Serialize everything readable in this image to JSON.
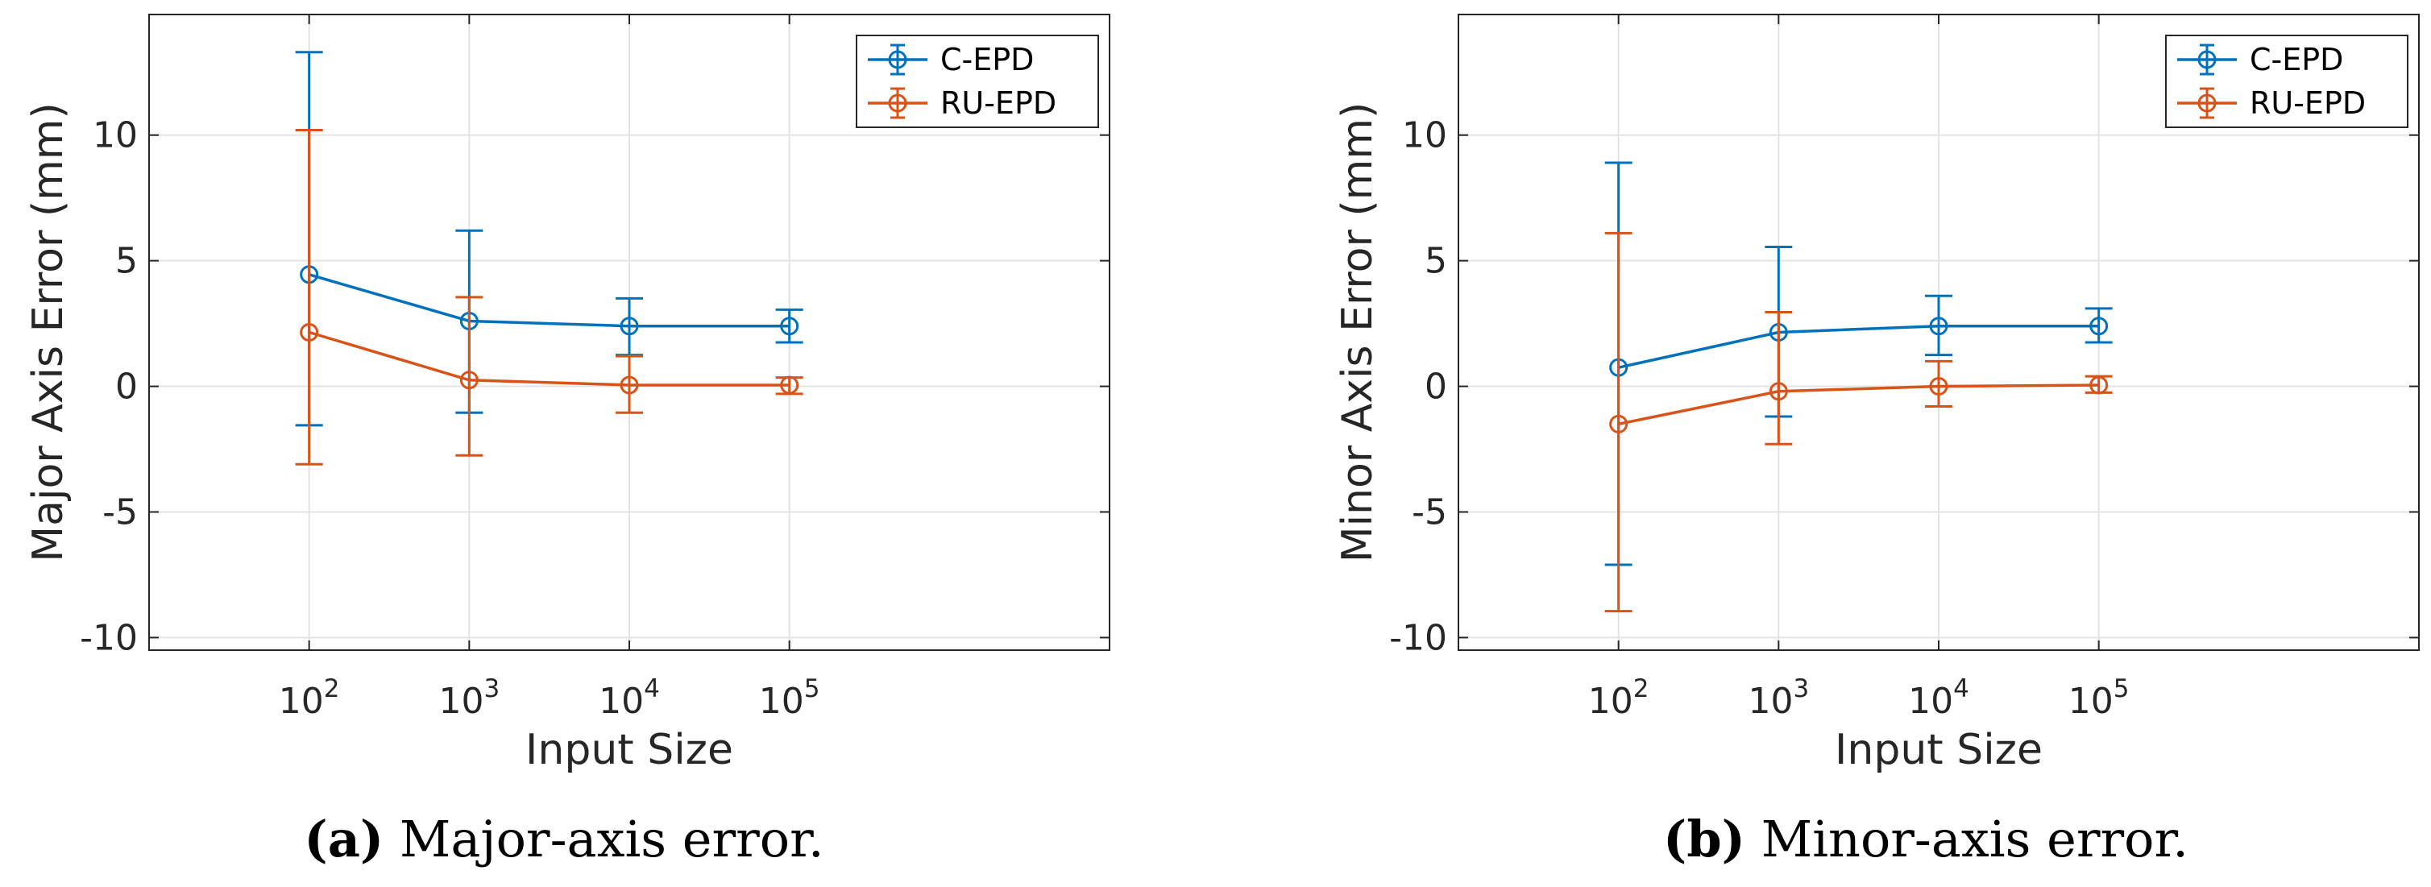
{
  "chart_data": [
    {
      "type": "line",
      "subtype": "errorbar",
      "title": "",
      "xlabel": "Input Size",
      "ylabel": "Major Axis Error (mm)",
      "xscale": "log",
      "xlim": [
        10,
        10000000
      ],
      "ylim": [
        -10.5,
        14.8
      ],
      "yticks": [
        -10,
        -5,
        0,
        5,
        10
      ],
      "ytick_labels": [
        "-10",
        "-5",
        "0",
        "5",
        "10"
      ],
      "xticks": [
        100,
        1000,
        10000,
        100000
      ],
      "xtick_labels": [
        {
          "base": "10",
          "exp": "2"
        },
        {
          "base": "10",
          "exp": "3"
        },
        {
          "base": "10",
          "exp": "4"
        },
        {
          "base": "10",
          "exp": "5"
        }
      ],
      "grid": true,
      "legend_position": "top-right",
      "x": [
        100,
        1000,
        10000,
        100000
      ],
      "series": [
        {
          "name": "C-EPD",
          "color": "#0072BD",
          "values": [
            4.45,
            2.6,
            2.4,
            2.4
          ],
          "lower": [
            -1.55,
            -1.05,
            1.25,
            1.75
          ],
          "upper": [
            13.3,
            6.2,
            3.5,
            3.05
          ]
        },
        {
          "name": "RU-EPD",
          "color": "#D95319",
          "values": [
            2.15,
            0.25,
            0.05,
            0.05
          ],
          "lower": [
            -3.1,
            -2.75,
            -1.05,
            -0.3
          ],
          "upper": [
            10.2,
            3.55,
            1.2,
            0.35
          ]
        }
      ],
      "caption": {
        "label": "(a)",
        "text": "Major-axis error."
      }
    },
    {
      "type": "line",
      "subtype": "errorbar",
      "title": "",
      "xlabel": "Input Size",
      "ylabel": "Minor Axis Error (mm)",
      "xscale": "log",
      "xlim": [
        10,
        10000000
      ],
      "ylim": [
        -10.5,
        14.8
      ],
      "yticks": [
        -10,
        -5,
        0,
        5,
        10
      ],
      "ytick_labels": [
        "-10",
        "-5",
        "0",
        "5",
        "10"
      ],
      "xticks": [
        100,
        1000,
        10000,
        100000
      ],
      "xtick_labels": [
        {
          "base": "10",
          "exp": "2"
        },
        {
          "base": "10",
          "exp": "3"
        },
        {
          "base": "10",
          "exp": "4"
        },
        {
          "base": "10",
          "exp": "5"
        }
      ],
      "grid": true,
      "legend_position": "top-right",
      "x": [
        100,
        1000,
        10000,
        100000
      ],
      "series": [
        {
          "name": "C-EPD",
          "color": "#0072BD",
          "values": [
            0.75,
            2.15,
            2.4,
            2.4
          ],
          "lower": [
            -7.1,
            -1.2,
            1.25,
            1.75
          ],
          "upper": [
            8.9,
            5.55,
            3.6,
            3.1
          ]
        },
        {
          "name": "RU-EPD",
          "color": "#D95319",
          "values": [
            -1.5,
            -0.2,
            0.0,
            0.05
          ],
          "lower": [
            -8.95,
            -2.3,
            -0.8,
            -0.25
          ],
          "upper": [
            6.1,
            2.95,
            1.0,
            0.4
          ]
        }
      ],
      "caption": {
        "label": "(b)",
        "text": "Minor-axis error."
      }
    }
  ]
}
